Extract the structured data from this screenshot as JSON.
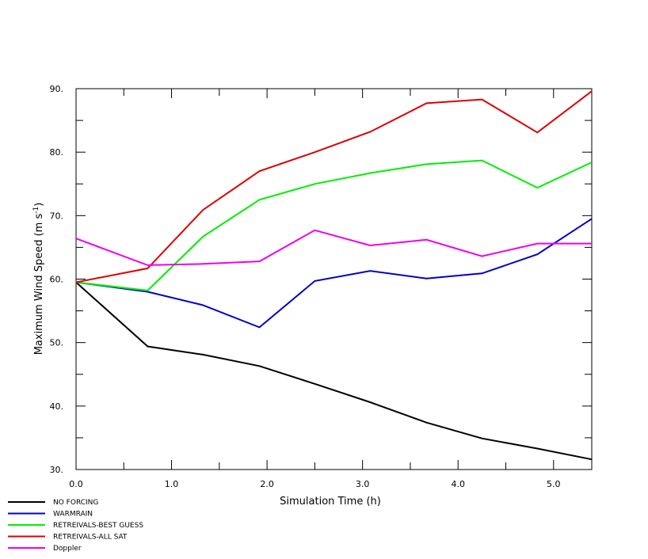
{
  "chart_data": {
    "type": "line",
    "title": "",
    "xlabel": "Simulation Time (h)",
    "ylabel_main": "Maximum Wind Speed (m s",
    "ylabel_sup": "-1",
    "ylabel_close": ")",
    "xlim": [
      0,
      5.4
    ],
    "ylim": [
      30,
      90
    ],
    "x_ticks": [
      {
        "v": 0,
        "label": "0.0"
      },
      {
        "v": 1,
        "label": "1.0"
      },
      {
        "v": 2,
        "label": "2.0"
      },
      {
        "v": 3,
        "label": "3.0"
      },
      {
        "v": 4,
        "label": "4.0"
      },
      {
        "v": 5,
        "label": "5.0"
      }
    ],
    "y_ticks": [
      {
        "v": 30,
        "label": "30."
      },
      {
        "v": 40,
        "label": "40."
      },
      {
        "v": 50,
        "label": "50."
      },
      {
        "v": 60,
        "label": "60."
      },
      {
        "v": 70,
        "label": "70."
      },
      {
        "v": 80,
        "label": "80."
      },
      {
        "v": 90,
        "label": "90."
      }
    ],
    "x": [
      0,
      0.75,
      1.33,
      1.92,
      2.5,
      3.08,
      3.67,
      4.25,
      4.83,
      5.4
    ],
    "legend_position": "bottom-left",
    "series": [
      {
        "name": "NO FORCING",
        "color": "#000000",
        "values": [
          59.5,
          49.4,
          48.1,
          46.3,
          43.5,
          40.6,
          37.4,
          34.9,
          33.3,
          31.6
        ]
      },
      {
        "name": "WARMRAIN",
        "color": "#0000cc",
        "values": [
          59.5,
          58.0,
          55.9,
          52.4,
          59.7,
          61.3,
          60.1,
          60.9,
          63.9,
          69.5
        ]
      },
      {
        "name": "RETREIVALS-BEST GUESS",
        "color": "#00ee00",
        "values": [
          59.5,
          58.2,
          66.7,
          72.5,
          75.0,
          76.7,
          78.1,
          78.7,
          74.4,
          78.4
        ]
      },
      {
        "name": "RETREIVALS-ALL SAT",
        "color": "#dd0000",
        "values": [
          59.5,
          61.7,
          70.9,
          77.0,
          80.0,
          83.2,
          87.7,
          88.3,
          83.1,
          89.6
        ]
      },
      {
        "name": "Doppler",
        "color": "#ee00ee",
        "values": [
          66.4,
          62.2,
          62.4,
          62.8,
          67.7,
          65.3,
          66.2,
          63.6,
          65.6,
          65.6
        ]
      }
    ]
  }
}
